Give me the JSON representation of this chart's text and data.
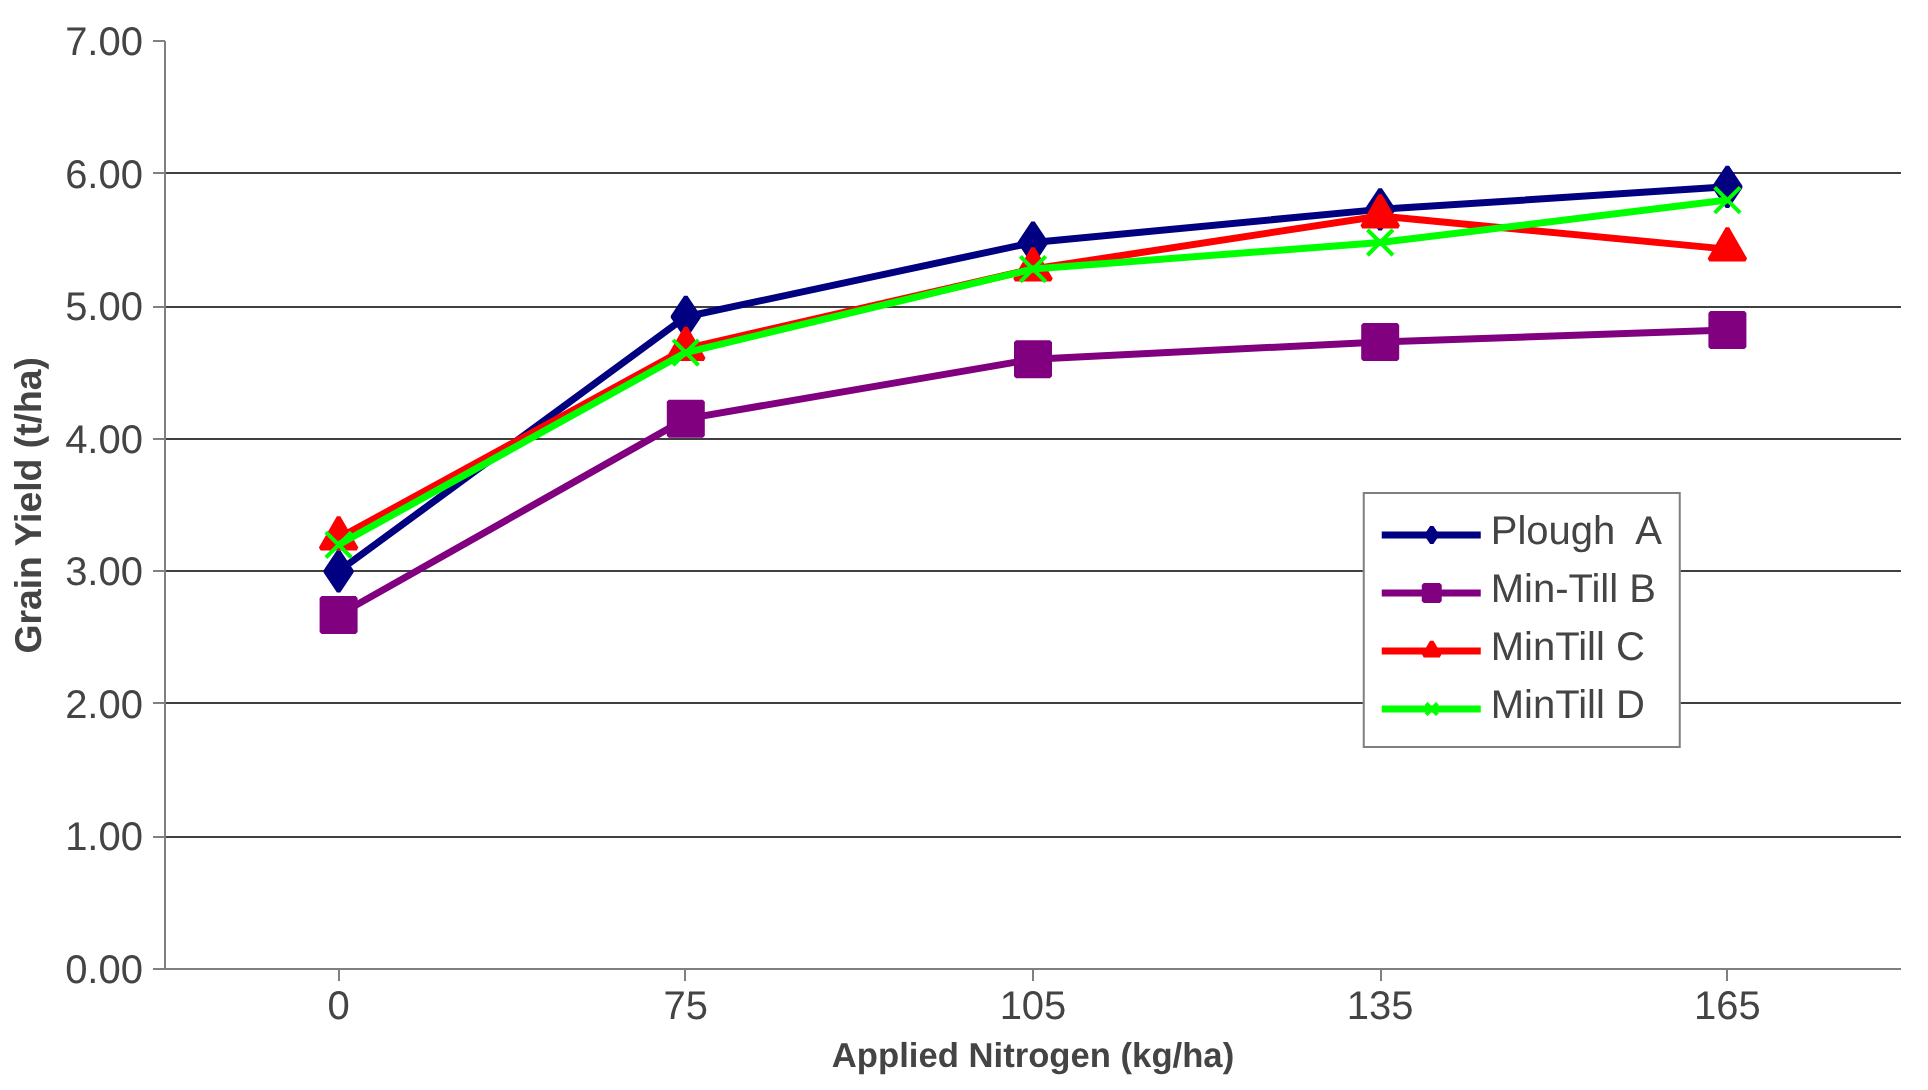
{
  "chart_data": {
    "type": "line",
    "xlabel": "Applied Nitrogen (kg/ha)",
    "ylabel": "Grain Yield (t/ha)",
    "categories": [
      "0",
      "75",
      "105",
      "135",
      "165"
    ],
    "series": [
      {
        "name": "Plough  A",
        "color": "#000080",
        "marker": "diamond",
        "values": [
          3.0,
          4.92,
          5.48,
          5.73,
          5.9
        ]
      },
      {
        "name": "Min-Till B",
        "color": "#800080",
        "marker": "square",
        "values": [
          2.67,
          4.15,
          4.6,
          4.73,
          4.82
        ]
      },
      {
        "name": "MinTill C",
        "color": "#ff0000",
        "marker": "triangle",
        "values": [
          3.25,
          4.68,
          5.28,
          5.68,
          5.43
        ]
      },
      {
        "name": "MinTill D",
        "color": "#00ff00",
        "marker": "cross",
        "values": [
          3.2,
          4.65,
          5.28,
          5.48,
          5.8
        ]
      }
    ],
    "ylim": [
      0,
      7
    ],
    "yticks": [
      {
        "value": 0,
        "label": "0.00"
      },
      {
        "value": 1,
        "label": "1.00"
      },
      {
        "value": 2,
        "label": "2.00"
      },
      {
        "value": 3,
        "label": "3.00"
      },
      {
        "value": 4,
        "label": "4.00"
      },
      {
        "value": 5,
        "label": "5.00"
      },
      {
        "value": 6,
        "label": "6.00"
      },
      {
        "value": 7,
        "label": "7.00"
      }
    ],
    "grid": "y",
    "legend": "bottom right",
    "line_style": "solid"
  }
}
